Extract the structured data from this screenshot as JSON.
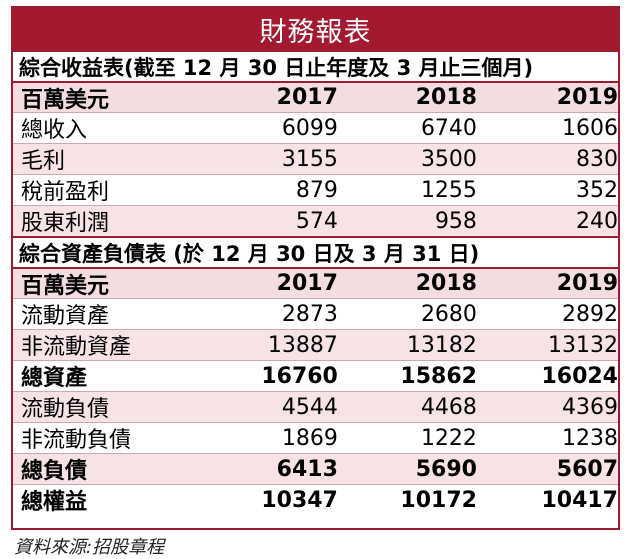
{
  "title": "財務報表",
  "income": {
    "heading": "綜合收益表(截至 12 月 30 日止年度及 3 月止三個月)",
    "header": {
      "label": "百萬美元",
      "years": [
        "2017",
        "2018",
        "2019"
      ]
    },
    "rows": [
      {
        "label": "總收入",
        "values": [
          "6099",
          "6740",
          "1606"
        ]
      },
      {
        "label": "毛利",
        "values": [
          "3155",
          "3500",
          "830"
        ]
      },
      {
        "label": "稅前盈利",
        "values": [
          "879",
          "1255",
          "352"
        ]
      },
      {
        "label": "股東利潤",
        "values": [
          "574",
          "958",
          "240"
        ]
      }
    ]
  },
  "balance": {
    "heading": "綜合資產負債表 (於 12 月 30 日及 3 月 31 日)",
    "header": {
      "label": "百萬美元",
      "years": [
        "2017",
        "2018",
        "2019"
      ]
    },
    "rows": [
      {
        "label": "流動資產",
        "values": [
          "2873",
          "2680",
          "2892"
        ]
      },
      {
        "label": "非流動資產",
        "values": [
          "13887",
          "13182",
          "13132"
        ]
      },
      {
        "label": "總資產",
        "values": [
          "16760",
          "15862",
          "16024"
        ]
      },
      {
        "label": "流動負債",
        "values": [
          "4544",
          "4468",
          "4369"
        ]
      },
      {
        "label": "非流動負債",
        "values": [
          "1869",
          "1222",
          "1238"
        ]
      },
      {
        "label": "總負債",
        "values": [
          "6413",
          "5690",
          "5607"
        ]
      },
      {
        "label": "總權益",
        "values": [
          "10347",
          "10172",
          "10417"
        ]
      }
    ]
  },
  "source": "資料來源:招股章程"
}
